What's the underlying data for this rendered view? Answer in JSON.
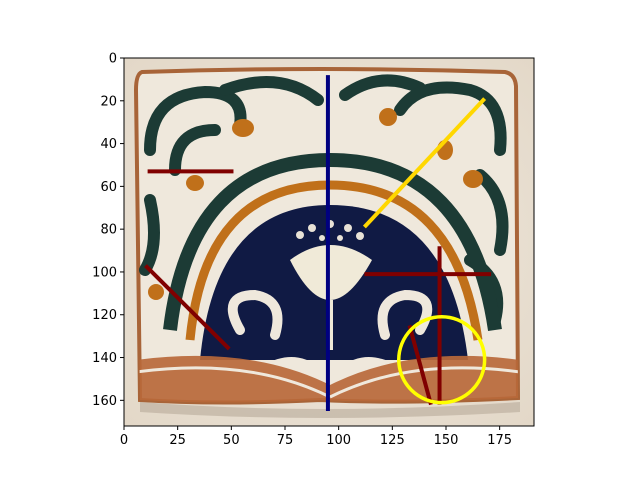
{
  "axes": {
    "x_ticks": [
      "0",
      "25",
      "50",
      "75",
      "100",
      "125",
      "150",
      "175"
    ],
    "y_ticks": [
      "0",
      "20",
      "40",
      "60",
      "80",
      "100",
      "120",
      "140",
      "160"
    ],
    "xlim": [
      0,
      191
    ],
    "ylim": [
      172,
      0
    ]
  },
  "image": {
    "subject": "decorative ceramic tile with scrolling leaves and flower motif",
    "palette": {
      "background": "#e9e0d2",
      "tile_cream": "#efe8dc",
      "dark_teal": "#1c3b35",
      "navy": "#101a44",
      "ochre": "#c0701a",
      "terracotta": "#b8683a",
      "edge_brown": "#9d5a32"
    }
  },
  "annotations": [
    {
      "kind": "line",
      "color": "#000080",
      "points": [
        [
          95,
          8
        ],
        [
          95,
          165
        ]
      ]
    },
    {
      "kind": "line",
      "color": "#ffd700",
      "points": [
        [
          112,
          79
        ],
        [
          168,
          19
        ]
      ]
    },
    {
      "kind": "line",
      "color": "#800000",
      "points": [
        [
          11,
          53
        ],
        [
          51,
          53
        ]
      ]
    },
    {
      "kind": "line",
      "color": "#800000",
      "points": [
        [
          10,
          97
        ],
        [
          49,
          136
        ]
      ]
    },
    {
      "kind": "line",
      "color": "#800000",
      "points": [
        [
          112,
          101
        ],
        [
          171,
          101
        ]
      ]
    },
    {
      "kind": "line",
      "color": "#800000",
      "points": [
        [
          147,
          88
        ],
        [
          147,
          162
        ]
      ]
    },
    {
      "kind": "line",
      "color": "#800000",
      "points": [
        [
          133,
          125
        ],
        [
          143,
          162
        ]
      ]
    },
    {
      "kind": "circle",
      "color": "#ffff00",
      "center": [
        148,
        141
      ],
      "radius": 20
    }
  ]
}
